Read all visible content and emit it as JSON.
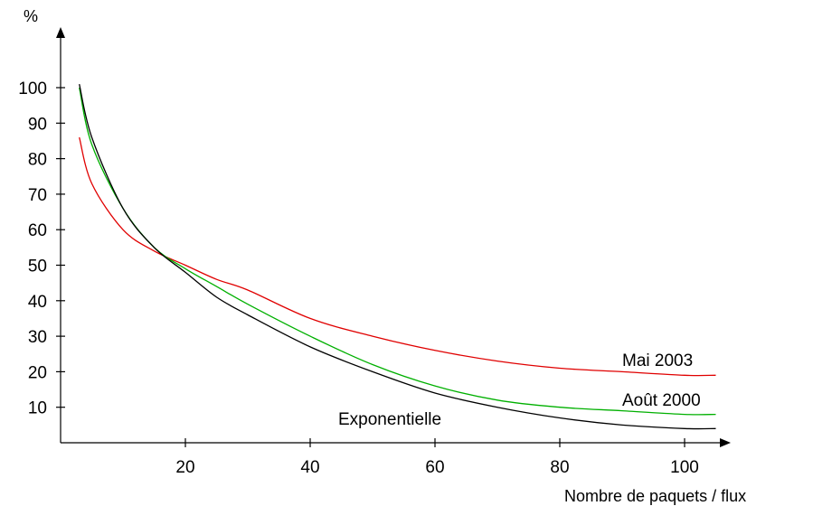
{
  "chart_data": {
    "type": "line",
    "title": "",
    "xlabel": "Nombre de paquets / flux",
    "ylabel": "%",
    "xlim": [
      0,
      106
    ],
    "ylim": [
      0,
      100
    ],
    "xticks": [
      20,
      40,
      60,
      80,
      100
    ],
    "yticks": [
      10,
      20,
      30,
      40,
      50,
      60,
      70,
      80,
      90,
      100
    ],
    "grid": false,
    "series": [
      {
        "name": "Mai 2003",
        "color": "#e00000",
        "x": [
          3,
          5,
          10,
          15,
          20,
          25,
          30,
          40,
          50,
          60,
          70,
          80,
          90,
          100,
          105
        ],
        "y": [
          86,
          73,
          60,
          54,
          50,
          46,
          43,
          35,
          30,
          26,
          23,
          21,
          20,
          19,
          19
        ]
      },
      {
        "name": "Août 2000",
        "color": "#00b000",
        "x": [
          3,
          5,
          10,
          15,
          20,
          25,
          30,
          40,
          50,
          60,
          70,
          80,
          90,
          100,
          105
        ],
        "y": [
          100,
          84,
          66,
          55,
          49,
          44,
          39,
          30,
          22,
          16,
          12,
          10,
          9,
          8,
          8
        ]
      },
      {
        "name": "Exponentielle",
        "color": "#000000",
        "x": [
          3,
          5,
          10,
          15,
          20,
          25,
          30,
          40,
          50,
          60,
          70,
          80,
          90,
          100,
          105
        ],
        "y": [
          101,
          86,
          66,
          55,
          48,
          41,
          36,
          27,
          20,
          14,
          10,
          7,
          5,
          4,
          4
        ]
      }
    ]
  }
}
